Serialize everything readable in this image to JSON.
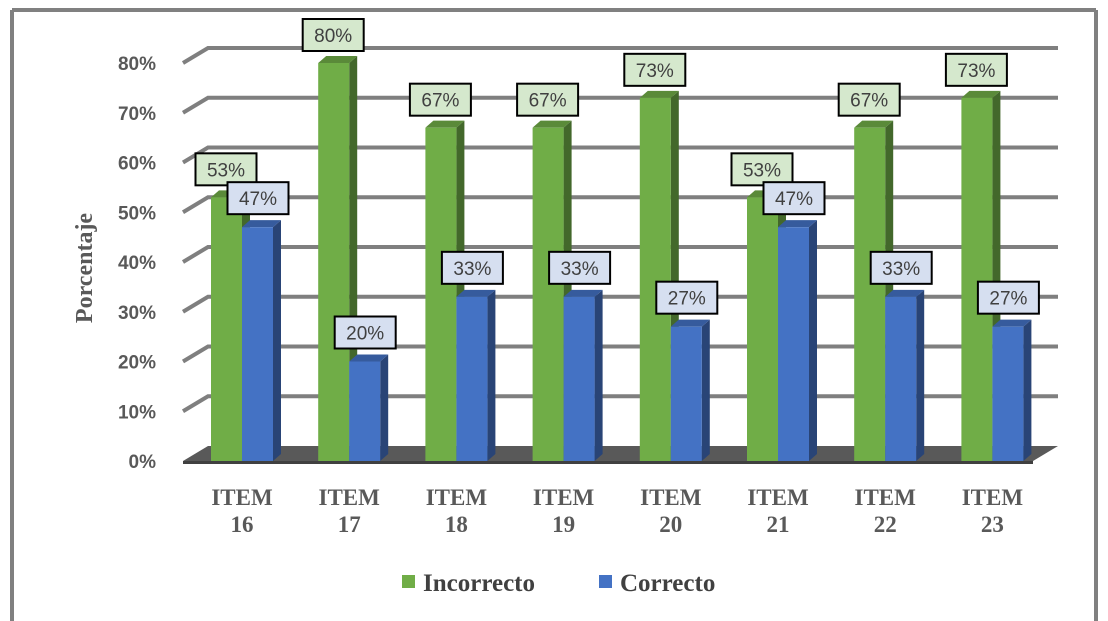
{
  "chart_data": {
    "type": "bar",
    "ylabel": "Porcentaje",
    "ylim": [
      0,
      80
    ],
    "y_ticks": [
      "0%",
      "10%",
      "20%",
      "30%",
      "40%",
      "50%",
      "60%",
      "70%",
      "80%"
    ],
    "categories": [
      "ITEM 16",
      "ITEM 17",
      "ITEM 18",
      "ITEM 19",
      "ITEM 20",
      "ITEM 21",
      "ITEM 22",
      "ITEM 23"
    ],
    "series": [
      {
        "name": "Incorrecto",
        "color": "#70ad47",
        "values": [
          53,
          80,
          67,
          67,
          73,
          53,
          67,
          73
        ],
        "labels": [
          "53%",
          "80%",
          "67%",
          "67%",
          "73%",
          "53%",
          "67%",
          "73%"
        ]
      },
      {
        "name": "Correcto",
        "color": "#4472c4",
        "values": [
          47,
          20,
          33,
          33,
          27,
          47,
          33,
          27
        ],
        "labels": [
          "47%",
          "20%",
          "33%",
          "33%",
          "27%",
          "47%",
          "33%",
          "27%"
        ]
      }
    ],
    "grid": true,
    "legend_position": "bottom",
    "style": "3d-clustered-column"
  }
}
